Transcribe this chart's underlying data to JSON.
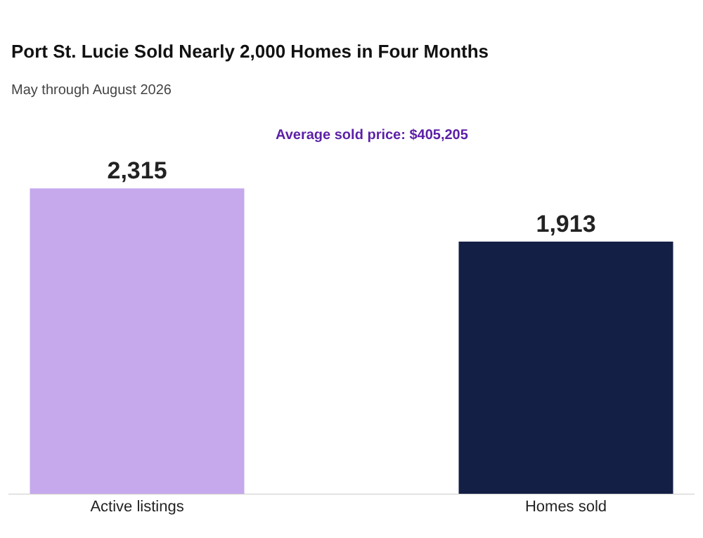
{
  "chart_data": {
    "type": "bar",
    "title": "Port St. Lucie Sold Nearly 2,000 Homes in Four Months",
    "subtitle": "May through August 2026",
    "categories": [
      "Active listings",
      "Homes sold"
    ],
    "values": [
      2315,
      1913
    ],
    "colors": [
      "#c5a9ec",
      "#131f45"
    ],
    "value_labels": [
      "2,315",
      "1,913"
    ],
    "annotations": [
      "Average sold price: $405,205"
    ]
  }
}
